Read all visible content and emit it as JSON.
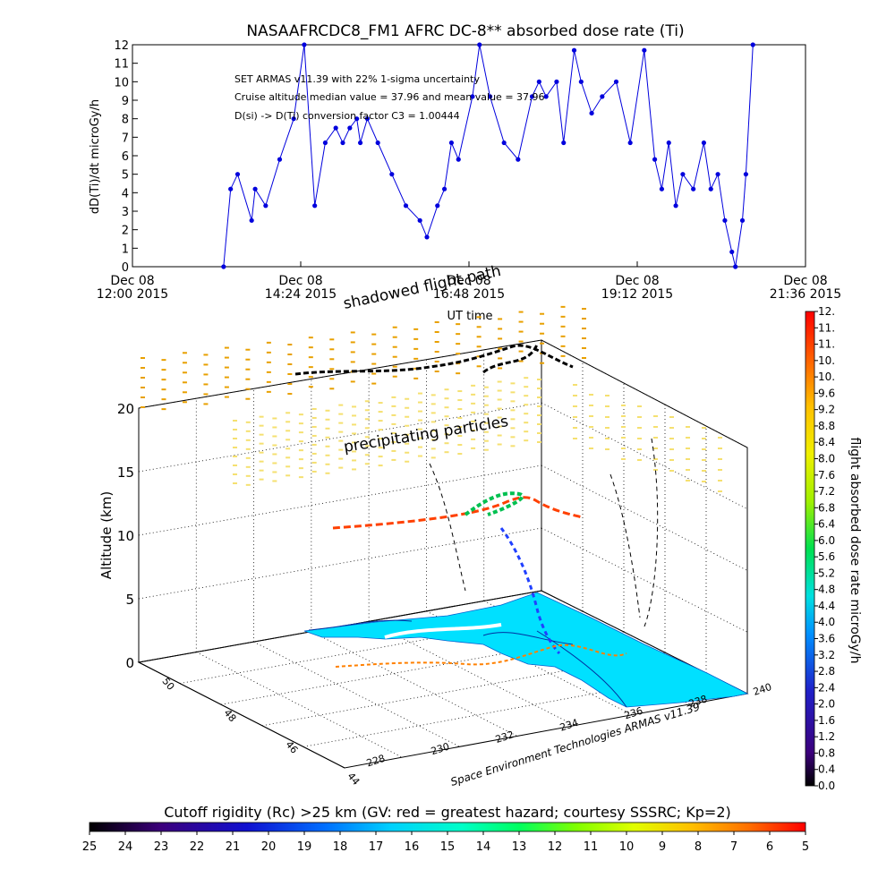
{
  "top_chart": {
    "title": "NASAAFRCDC8_FM1 AFRC DC-8** absorbed dose rate (Ti)",
    "ylabel": "dD(Ti)/dt microGy/h",
    "xlabel": "UT time",
    "y_ticks": [
      "0",
      "1",
      "2",
      "3",
      "4",
      "5",
      "6",
      "7",
      "8",
      "9",
      "10",
      "11",
      "12"
    ],
    "x_ticks": [
      {
        "line1": "Dec 08",
        "line2": "12:00 2015"
      },
      {
        "line1": "Dec 08",
        "line2": "14:24 2015"
      },
      {
        "line1": "Dec 08",
        "line2": "16:48 2015"
      },
      {
        "line1": "Dec 08",
        "line2": "19:12 2015"
      },
      {
        "line1": "Dec 08",
        "line2": "21:36 2015"
      }
    ],
    "annotations": [
      "SET ARMAS v11.39 with 22% 1-sigma uncertainty",
      "Cruise altitude median value = 37.96 and mean value = 37.96",
      "D(si) -> D(Ti) conversion factor C3 = 1.00444"
    ],
    "line_color": "#0000dd"
  },
  "chart_data": [
    {
      "type": "line",
      "title": "NASAAFRCDC8_FM1 AFRC DC-8** absorbed dose rate (Ti)",
      "xlabel": "UT time",
      "ylabel": "dD(Ti)/dt microGy/h",
      "x_unit": "hours UT, Dec 08 2015",
      "xlim": [
        12.0,
        21.6
      ],
      "ylim": [
        0,
        12
      ],
      "x": [
        13.3,
        13.4,
        13.5,
        13.7,
        13.75,
        13.9,
        14.1,
        14.3,
        14.45,
        14.6,
        14.75,
        14.9,
        15.0,
        15.1,
        15.2,
        15.25,
        15.35,
        15.5,
        15.7,
        15.9,
        16.1,
        16.2,
        16.35,
        16.45,
        16.55,
        16.65,
        16.85,
        16.95,
        17.1,
        17.3,
        17.5,
        17.7,
        17.8,
        17.9,
        18.05,
        18.15,
        18.3,
        18.4,
        18.55,
        18.7,
        18.9,
        19.1,
        19.3,
        19.45,
        19.55,
        19.65,
        19.75,
        19.85,
        20.0,
        20.15,
        20.25,
        20.35,
        20.45,
        20.55,
        20.6,
        20.7,
        20.75,
        20.85
      ],
      "values": [
        0,
        4.2,
        5,
        2.5,
        4.2,
        3.3,
        5.8,
        8,
        12,
        3.3,
        6.7,
        7.5,
        6.7,
        7.5,
        8,
        6.7,
        8,
        6.7,
        5,
        3.3,
        2.5,
        1.6,
        3.3,
        4.2,
        6.7,
        5.8,
        9.2,
        12,
        9.2,
        6.7,
        5.8,
        9.2,
        10,
        9.2,
        10,
        6.7,
        11.7,
        10,
        8.3,
        9.2,
        10,
        6.7,
        11.7,
        5.8,
        4.2,
        6.7,
        3.3,
        5,
        4.2,
        6.7,
        4.2,
        5,
        2.5,
        0.8,
        0,
        2.5,
        5,
        12
      ]
    },
    {
      "type": "scatter",
      "title": "",
      "ylabel": "Altitude (km)",
      "x_axis_label": "Space Environment Technologies ARMAS v11.39",
      "z_ticks": [
        "0",
        "5",
        "10",
        "15",
        "20"
      ],
      "x_ticks": [
        "228",
        "230",
        "232",
        "234",
        "236",
        "238",
        "240"
      ],
      "y_ticks": [
        "44",
        "46",
        "48",
        "50"
      ],
      "zlim": [
        0,
        20
      ],
      "annotations": [
        "shadowed flight path",
        "precipitating particles"
      ],
      "colorbar_label": "flight absorbed dose rate microGy/h",
      "colorbar_ticks": [
        "0.0",
        "0.4",
        "0.8",
        "1.2",
        "1.6",
        "2.0",
        "2.4",
        "2.8",
        "3.2",
        "3.6",
        "4.0",
        "4.4",
        "4.8",
        "5.2",
        "5.6",
        "6.0",
        "6.4",
        "6.8",
        "7.2",
        "7.6",
        "8.0",
        "8.4",
        "8.8",
        "9.2",
        "9.6",
        "10.",
        "10.",
        "11.",
        "11.",
        "12."
      ]
    }
  ],
  "bottom_colorbar": {
    "title": "Cutoff rigidity (Rc) >25 km (GV: red = greatest hazard; courtesy SSSRC; Kp=2)",
    "ticks": [
      "25",
      "24",
      "23",
      "22",
      "21",
      "20",
      "19",
      "18",
      "17",
      "16",
      "15",
      "14",
      "13",
      "12",
      "11",
      "10",
      "9",
      "8",
      "7",
      "6",
      "5"
    ]
  },
  "colors": {
    "dose_scale": [
      "#000000",
      "#2a0050",
      "#3c007c",
      "#2020c8",
      "#0050f0",
      "#0090ff",
      "#00c8ff",
      "#00e0e0",
      "#00e0a0",
      "#00e050",
      "#40f000",
      "#a0f000",
      "#e8f000",
      "#ffc000",
      "#ff8000",
      "#ff4000",
      "#ff0000"
    ],
    "rigidity_scale": [
      "#000000",
      "#3c007c",
      "#1010d0",
      "#0070ff",
      "#00d0ff",
      "#00ffc8",
      "#00ff60",
      "#80ff00",
      "#e0ff00",
      "#ffc000",
      "#ff7000",
      "#ff0000"
    ],
    "ground": "#00e0ff",
    "upper_dashes": "#e8a000",
    "lower_dashes": "#f5e070"
  }
}
